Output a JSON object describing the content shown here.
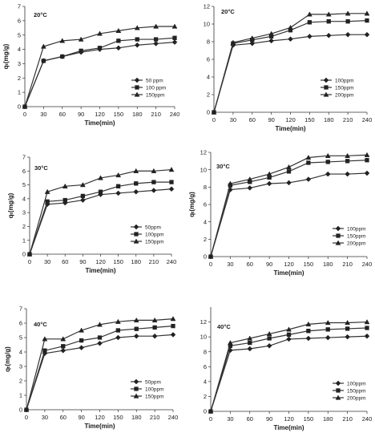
{
  "figure": {
    "background": "#ffffff",
    "line_color": "#333333"
  },
  "chart_data": [
    {
      "type": "line",
      "title": "20°C",
      "xlabel": "Time(min)",
      "ylabel": "qₜ(mg/g)",
      "x": [
        0,
        30,
        60,
        90,
        120,
        150,
        180,
        210,
        240
      ],
      "xlim": [
        0,
        240
      ],
      "ylim": [
        0,
        7
      ],
      "yticks": [
        0,
        1,
        2,
        3,
        4,
        5,
        6,
        7
      ],
      "grid": false,
      "legend_position": "right",
      "series": [
        {
          "name": "50 ppm",
          "marker": "diamond",
          "values": [
            0,
            3.2,
            3.5,
            3.8,
            4.0,
            4.1,
            4.3,
            4.4,
            4.5
          ]
        },
        {
          "name": "100 ppm",
          "marker": "square",
          "values": [
            0,
            3.2,
            3.5,
            3.9,
            4.1,
            4.6,
            4.7,
            4.7,
            4.8
          ]
        },
        {
          "name": "150ppm",
          "marker": "triangle",
          "values": [
            0,
            4.2,
            4.6,
            4.7,
            5.1,
            5.3,
            5.5,
            5.6,
            5.6
          ]
        }
      ]
    },
    {
      "type": "line",
      "title": "20°C",
      "xlabel": "Time(min)",
      "ylabel": "",
      "x": [
        0,
        30,
        60,
        90,
        120,
        150,
        180,
        210,
        240
      ],
      "xlim": [
        0,
        240
      ],
      "ylim": [
        0,
        12
      ],
      "yticks": [
        0,
        2,
        4,
        6,
        8,
        10,
        12
      ],
      "grid": false,
      "legend_position": "right",
      "series": [
        {
          "name": "100ppm",
          "marker": "diamond",
          "values": [
            0,
            7.6,
            7.8,
            8.1,
            8.3,
            8.6,
            8.7,
            8.8,
            8.8
          ]
        },
        {
          "name": "150ppm",
          "marker": "square",
          "values": [
            0,
            7.8,
            8.2,
            8.6,
            9.3,
            10.2,
            10.3,
            10.3,
            10.4
          ]
        },
        {
          "name": "200ppm",
          "marker": "triangle",
          "values": [
            0,
            7.9,
            8.4,
            8.9,
            9.6,
            11.1,
            11.1,
            11.2,
            11.2
          ]
        }
      ]
    },
    {
      "type": "line",
      "title": "30°C",
      "xlabel": "Time(min)",
      "ylabel": "qₜ(mg/g)",
      "x": [
        0,
        30,
        60,
        90,
        120,
        150,
        180,
        210,
        240
      ],
      "xlim": [
        0,
        240
      ],
      "ylim": [
        0,
        7
      ],
      "yticks": [
        0,
        1,
        2,
        3,
        4,
        5,
        6,
        7
      ],
      "grid": false,
      "legend_position": "right",
      "series": [
        {
          "name": "50ppm",
          "marker": "diamond",
          "values": [
            0,
            3.6,
            3.7,
            3.9,
            4.3,
            4.4,
            4.5,
            4.6,
            4.7
          ]
        },
        {
          "name": "100ppm",
          "marker": "square",
          "values": [
            0,
            3.8,
            3.9,
            4.2,
            4.5,
            4.9,
            5.1,
            5.2,
            5.2
          ]
        },
        {
          "name": "150ppm",
          "marker": "triangle",
          "values": [
            0,
            4.5,
            4.9,
            5.0,
            5.5,
            5.7,
            6.0,
            6.0,
            6.1
          ]
        }
      ]
    },
    {
      "type": "line",
      "title": "30°C",
      "xlabel": "Time(min)",
      "ylabel": "qₜ(mg/g)",
      "x": [
        0,
        30,
        60,
        90,
        120,
        150,
        180,
        210,
        240
      ],
      "xlim": [
        0,
        240
      ],
      "ylim": [
        0,
        12
      ],
      "yticks": [
        0,
        2,
        4,
        6,
        8,
        10,
        12
      ],
      "grid": false,
      "legend_position": "right",
      "series": [
        {
          "name": "100ppm",
          "marker": "diamond",
          "values": [
            0,
            7.7,
            7.9,
            8.4,
            8.5,
            8.9,
            9.5,
            9.5,
            9.6
          ]
        },
        {
          "name": "150ppm",
          "marker": "square",
          "values": [
            0,
            8.2,
            8.6,
            9.1,
            9.8,
            10.8,
            10.9,
            11.0,
            11.1
          ]
        },
        {
          "name": "200ppm",
          "marker": "triangle",
          "values": [
            0,
            8.4,
            8.9,
            9.5,
            10.3,
            11.4,
            11.6,
            11.6,
            11.7
          ]
        }
      ]
    },
    {
      "type": "line",
      "title": "40°C",
      "xlabel": "Time(min)",
      "ylabel": "qₜ(mg/g)",
      "x": [
        0,
        30,
        60,
        90,
        120,
        150,
        180,
        210,
        240
      ],
      "xlim": [
        0,
        240
      ],
      "ylim": [
        0,
        7
      ],
      "yticks": [
        0,
        1,
        2,
        3,
        4,
        5,
        6,
        7
      ],
      "grid": false,
      "legend_position": "right",
      "series": [
        {
          "name": "50ppm",
          "marker": "diamond",
          "values": [
            0,
            3.9,
            4.1,
            4.3,
            4.6,
            5.0,
            5.1,
            5.1,
            5.2
          ]
        },
        {
          "name": "100ppm",
          "marker": "square",
          "values": [
            0,
            4.1,
            4.4,
            4.8,
            5.0,
            5.5,
            5.6,
            5.7,
            5.8
          ]
        },
        {
          "name": "150ppm",
          "marker": "triangle",
          "values": [
            0,
            4.9,
            4.9,
            5.5,
            5.9,
            6.1,
            6.2,
            6.2,
            6.3
          ]
        }
      ]
    },
    {
      "type": "line",
      "title": "40°C",
      "xlabel": "Time(min)",
      "ylabel": "",
      "x": [
        0,
        30,
        60,
        90,
        120,
        150,
        180,
        210,
        240
      ],
      "xlim": [
        0,
        240
      ],
      "ylim": [
        0,
        14
      ],
      "yticks": [
        0,
        2,
        4,
        6,
        8,
        10,
        12
      ],
      "grid": false,
      "legend_position": "right",
      "series": [
        {
          "name": "100ppm",
          "marker": "diamond",
          "values": [
            0,
            8.2,
            8.4,
            8.8,
            9.7,
            9.8,
            9.9,
            10.0,
            10.1
          ]
        },
        {
          "name": "150ppm",
          "marker": "square",
          "values": [
            0,
            8.8,
            9.2,
            9.8,
            10.3,
            10.8,
            11.0,
            11.1,
            11.2
          ]
        },
        {
          "name": "200ppm",
          "marker": "triangle",
          "values": [
            0,
            9.2,
            9.8,
            10.4,
            11.0,
            11.7,
            11.9,
            11.9,
            12.0
          ]
        }
      ]
    }
  ]
}
